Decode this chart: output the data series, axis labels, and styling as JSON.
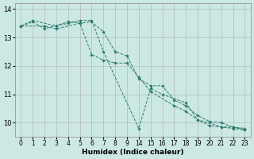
{
  "xlabel": "Humidex (Indice chaleur)",
  "background_color": "#cce8e4",
  "grid_color": "#b0b0b0",
  "line_color": "#2d7a6a",
  "xlim": [
    -0.5,
    19.5
  ],
  "ylim": [
    9.5,
    14.2
  ],
  "yticks": [
    10,
    11,
    12,
    13,
    14
  ],
  "xtick_labels": [
    "0",
    "1",
    "2",
    "3",
    "4",
    "5",
    "6",
    "7",
    "8",
    "9",
    "14",
    "15",
    "16",
    "17",
    "18",
    "19",
    "20",
    "21",
    "22",
    "23"
  ],
  "lines": [
    {
      "xi": [
        0,
        1,
        3,
        4,
        5,
        6,
        7,
        10,
        11,
        12,
        14,
        15,
        16,
        17,
        18,
        19
      ],
      "y": [
        13.4,
        13.6,
        13.4,
        13.5,
        13.6,
        13.6,
        12.5,
        9.8,
        11.2,
        11.0,
        10.7,
        10.1,
        10.0,
        9.85,
        9.85,
        9.8
      ]
    },
    {
      "xi": [
        0,
        2,
        3,
        5,
        6,
        7,
        8,
        9,
        10,
        11,
        13,
        14,
        15,
        16,
        17,
        18,
        19
      ],
      "y": [
        13.4,
        13.4,
        13.3,
        13.5,
        12.4,
        12.2,
        12.1,
        12.1,
        11.6,
        11.1,
        10.6,
        10.4,
        10.1,
        9.9,
        9.85,
        9.8,
        9.75
      ]
    },
    {
      "xi": [
        0,
        1,
        2,
        4,
        5,
        6,
        7,
        8,
        9,
        10,
        11,
        12,
        13,
        14,
        15,
        16,
        17,
        18,
        19
      ],
      "y": [
        13.4,
        13.55,
        13.3,
        13.55,
        13.5,
        13.55,
        13.2,
        12.5,
        12.35,
        11.55,
        11.3,
        11.3,
        10.8,
        10.6,
        10.25,
        10.05,
        10.0,
        9.85,
        9.75
      ]
    }
  ]
}
